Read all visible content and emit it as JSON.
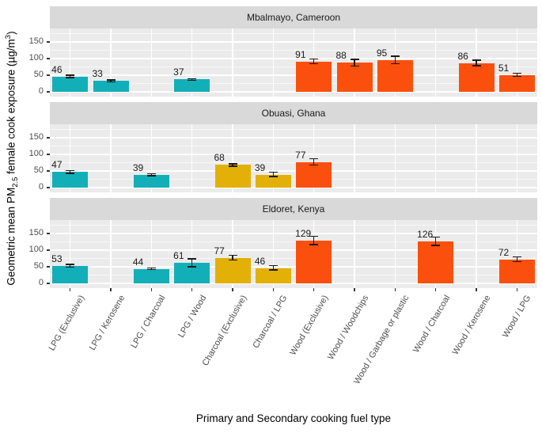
{
  "chart_data": {
    "type": "bar",
    "title": "",
    "xlabel": "Primary and Secondary cooking fuel type",
    "ylabel": "Geometric mean PM2.5 female cook exposure (µg/m³)",
    "ylabel_parts": {
      "pre": "Geometric mean PM",
      "sub": "2.5",
      "mid": " female cook exposure (µg/m",
      "sup": "3",
      "post": ")"
    },
    "ylim": [
      0,
      190
    ],
    "yticks": [
      0,
      50,
      100,
      150
    ],
    "yticks_minor": [
      25,
      75,
      125,
      175
    ],
    "grid": true,
    "legend": "none",
    "panel_bg": "#ebebeb",
    "strip_bg": "#d9d9d9",
    "grid_color": "#ffffff",
    "error_color": "#1a1a1a",
    "group_colors": {
      "LPG": "#13afb8",
      "Charcoal": "#e2b007",
      "Wood": "#fb500d"
    },
    "categories": [
      {
        "label": "LPG (Exclusive)",
        "group": "LPG"
      },
      {
        "label": "LPG / Kerosene",
        "group": "LPG"
      },
      {
        "label": "LPG / Charcoal",
        "group": "LPG"
      },
      {
        "label": "LPG / Wood",
        "group": "LPG"
      },
      {
        "label": "Charcoal (Exclusive)",
        "group": "Charcoal"
      },
      {
        "label": "Charcoal / LPG",
        "group": "Charcoal"
      },
      {
        "label": "Wood (Exclusive)",
        "group": "Wood"
      },
      {
        "label": "Wood / Woodchips",
        "group": "Wood"
      },
      {
        "label": "Wood / Garbage or plastic",
        "group": "Wood"
      },
      {
        "label": "Wood / Charcoal",
        "group": "Wood"
      },
      {
        "label": "Wood / Kerosene",
        "group": "Wood"
      },
      {
        "label": "Wood / LPG",
        "group": "Wood"
      }
    ],
    "facets": [
      {
        "label": "Mbalmayo, Cameroon",
        "bars": [
          {
            "category": "LPG (Exclusive)",
            "value": 46,
            "err_low": 43,
            "err_high": 50
          },
          {
            "category": "LPG / Kerosene",
            "value": 33,
            "err_low": 30,
            "err_high": 36
          },
          {
            "category": "LPG / Wood",
            "value": 37,
            "err_low": 35,
            "err_high": 39
          },
          {
            "category": "Wood (Exclusive)",
            "value": 91,
            "err_low": 84,
            "err_high": 99
          },
          {
            "category": "Wood / Woodchips",
            "value": 88,
            "err_low": 77,
            "err_high": 98
          },
          {
            "category": "Wood / Garbage or plastic",
            "value": 95,
            "err_low": 84,
            "err_high": 107
          },
          {
            "category": "Wood / Kerosene",
            "value": 86,
            "err_low": 78,
            "err_high": 95
          },
          {
            "category": "Wood / LPG",
            "value": 51,
            "err_low": 47,
            "err_high": 56
          }
        ]
      },
      {
        "label": "Obuasi, Ghana",
        "bars": [
          {
            "category": "LPG (Exclusive)",
            "value": 47,
            "err_low": 43,
            "err_high": 51
          },
          {
            "category": "LPG / Charcoal",
            "value": 39,
            "err_low": 36,
            "err_high": 42
          },
          {
            "category": "Charcoal (Exclusive)",
            "value": 68,
            "err_low": 64,
            "err_high": 72
          },
          {
            "category": "Charcoal / LPG",
            "value": 39,
            "err_low": 33,
            "err_high": 46
          },
          {
            "category": "Wood (Exclusive)",
            "value": 77,
            "err_low": 68,
            "err_high": 87
          }
        ]
      },
      {
        "label": "Eldoret, Kenya",
        "bars": [
          {
            "category": "LPG (Exclusive)",
            "value": 53,
            "err_low": 49,
            "err_high": 57
          },
          {
            "category": "LPG / Charcoal",
            "value": 44,
            "err_low": 42,
            "err_high": 47
          },
          {
            "category": "LPG / Wood",
            "value": 61,
            "err_low": 50,
            "err_high": 74
          },
          {
            "category": "Charcoal (Exclusive)",
            "value": 77,
            "err_low": 70,
            "err_high": 85
          },
          {
            "category": "Charcoal / LPG",
            "value": 46,
            "err_low": 40,
            "err_high": 53
          },
          {
            "category": "Wood (Exclusive)",
            "value": 129,
            "err_low": 117,
            "err_high": 142
          },
          {
            "category": "Wood / Charcoal",
            "value": 126,
            "err_low": 114,
            "err_high": 139
          },
          {
            "category": "Wood / LPG",
            "value": 72,
            "err_low": 65,
            "err_high": 80
          }
        ]
      }
    ]
  }
}
